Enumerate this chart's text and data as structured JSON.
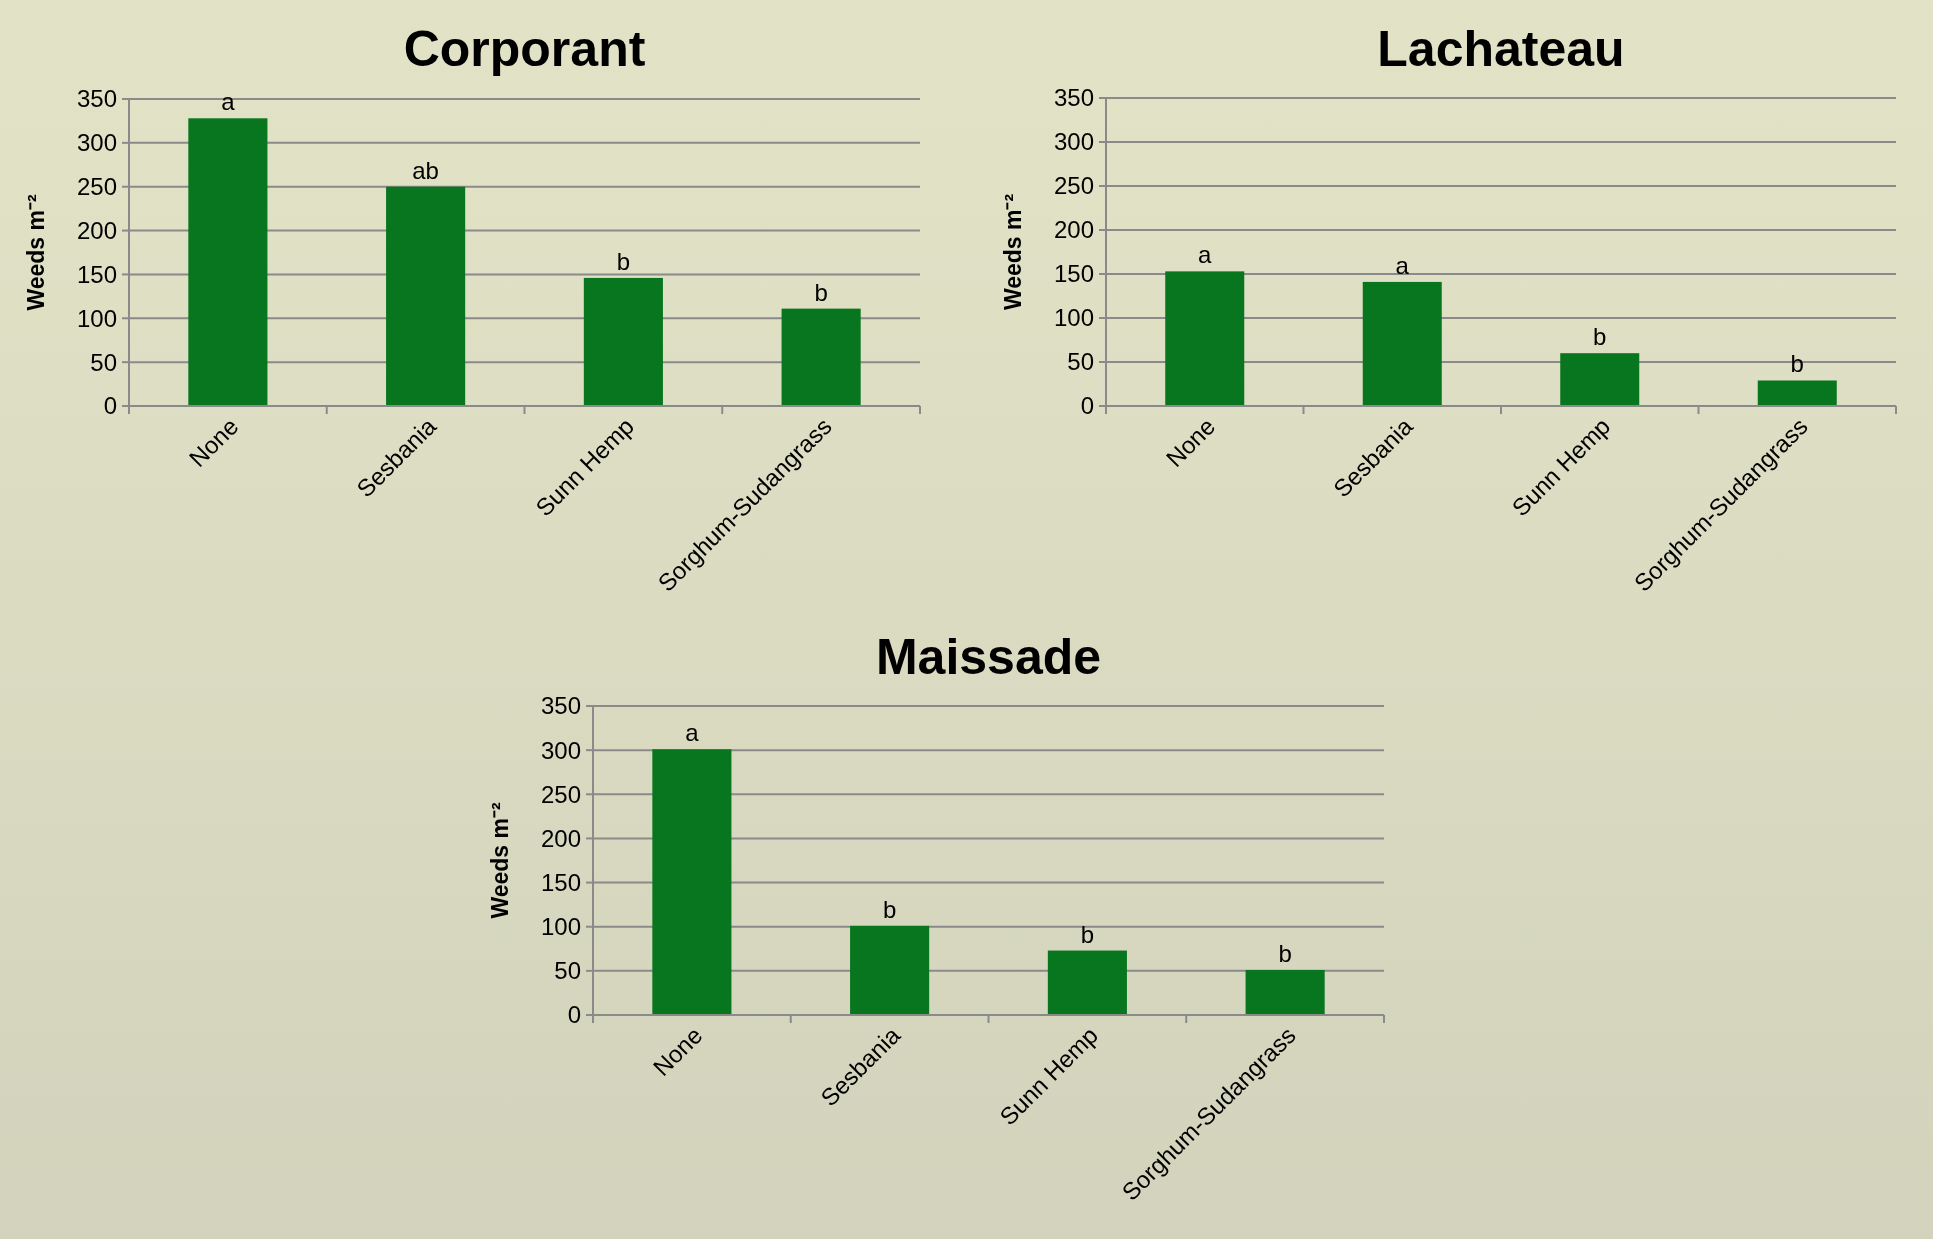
{
  "chart_data": [
    {
      "type": "bar",
      "title": "Corporant",
      "ylabel": "Weeds m⁻²",
      "categories": [
        "None",
        "Sesbania",
        "Sunn Hemp",
        "Sorghum-Sudangrass"
      ],
      "values": [
        328,
        250,
        146,
        111
      ],
      "color": "#08761e",
      "ylim": [
        0,
        350
      ],
      "yticks": [
        0,
        50,
        100,
        150,
        200,
        250,
        300,
        350
      ],
      "grid": "y",
      "annotations": [
        {
          "text": "a",
          "x": "None",
          "y": 328
        },
        {
          "text": "ab",
          "x": "Sesbania",
          "y": 250
        },
        {
          "text": "b",
          "x": "Sunn Hemp",
          "y": 146
        },
        {
          "text": "b",
          "x": "Sorghum-Sudangrass",
          "y": 111
        }
      ]
    },
    {
      "type": "bar",
      "title": "Lachateau",
      "ylabel": "Weeds m⁻²",
      "categories": [
        "None",
        "Sesbania",
        "Sunn Hemp",
        "Sorghum-Sudangrass"
      ],
      "values": [
        153,
        141,
        60,
        29
      ],
      "color": "#08761e",
      "ylim": [
        0,
        350
      ],
      "yticks": [
        0,
        50,
        100,
        150,
        200,
        250,
        300,
        350
      ],
      "grid": "y",
      "annotations": [
        {
          "text": "a",
          "x": "None",
          "y": 153
        },
        {
          "text": "a",
          "x": "Sesbania",
          "y": 141
        },
        {
          "text": "b",
          "x": "Sunn Hemp",
          "y": 60
        },
        {
          "text": "b",
          "x": "Sorghum-Sudangrass",
          "y": 29
        }
      ]
    },
    {
      "type": "bar",
      "title": "Maissade",
      "ylabel": "Weeds m⁻²",
      "categories": [
        "None",
        "Sesbania",
        "Sunn Hemp",
        "Sorghum-Sudangrass"
      ],
      "values": [
        301,
        101,
        73,
        51
      ],
      "color": "#08761e",
      "ylim": [
        0,
        350
      ],
      "yticks": [
        0,
        50,
        100,
        150,
        200,
        250,
        300,
        350
      ],
      "grid": "y",
      "annotations": [
        {
          "text": "a",
          "x": "None",
          "y": 301
        },
        {
          "text": "b",
          "x": "Sesbania",
          "y": 101
        },
        {
          "text": "b",
          "x": "Sunn Hemp",
          "y": 73
        },
        {
          "text": "b",
          "x": "Sorghum-Sudangrass",
          "y": 51
        }
      ]
    }
  ]
}
